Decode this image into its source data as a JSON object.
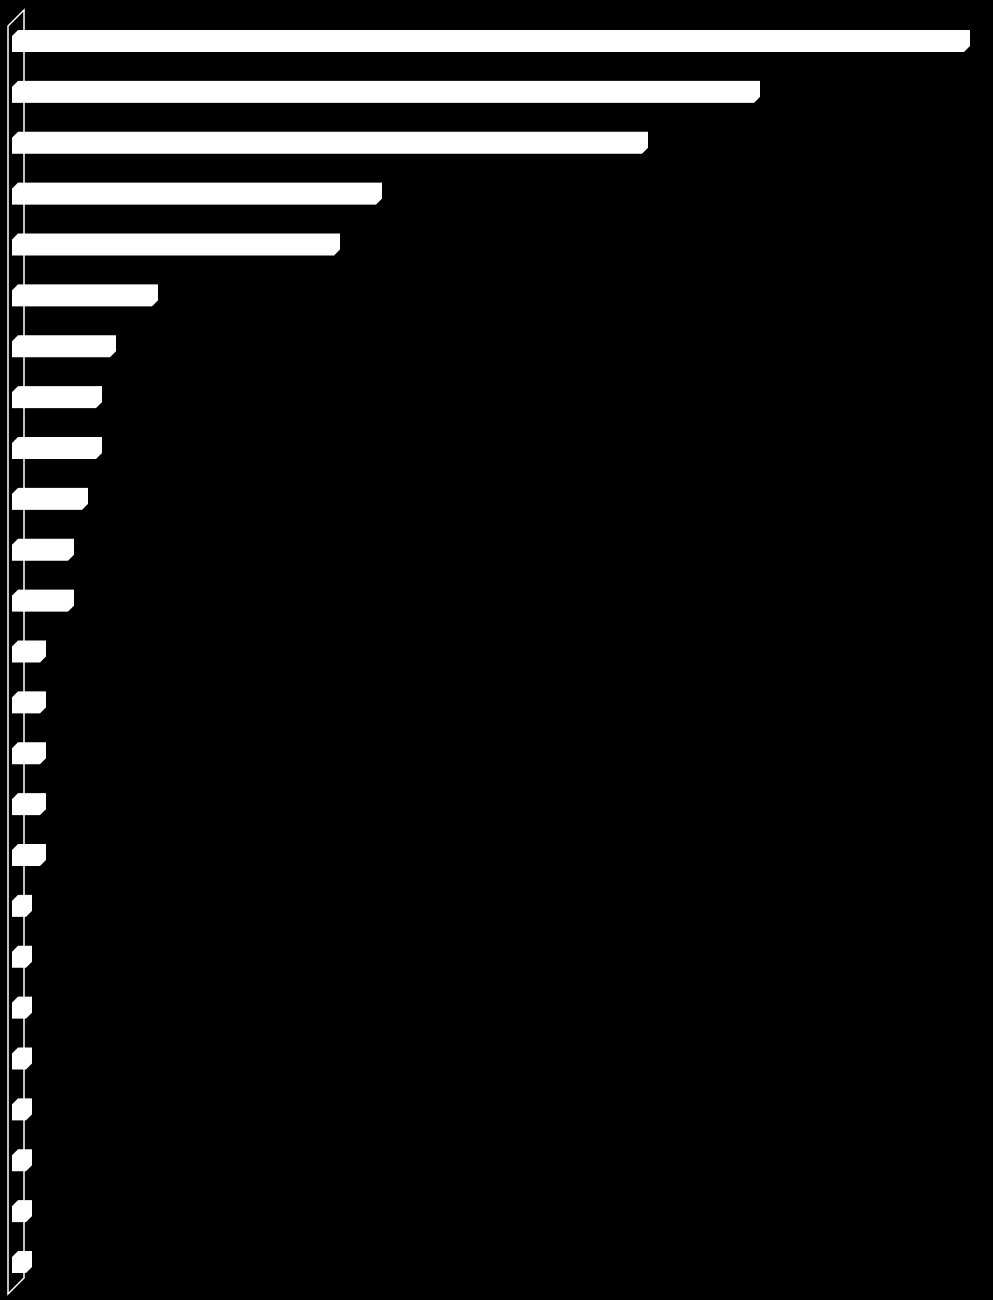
{
  "chart_data": {
    "type": "bar",
    "orientation": "horizontal",
    "categories": [
      null,
      null,
      null,
      null,
      null,
      null,
      null,
      null,
      null,
      null,
      null,
      null,
      null,
      null,
      null,
      null,
      null,
      null,
      null,
      null,
      null,
      null,
      null,
      null,
      null
    ],
    "values": [
      68,
      53,
      45,
      26,
      23,
      10,
      7,
      6,
      6,
      5,
      4,
      4,
      2,
      2,
      2,
      2,
      2,
      1,
      1,
      1,
      1,
      1,
      1,
      1,
      1
    ],
    "color": "#ffffff",
    "background": "#000000",
    "xlim": [
      0,
      68
    ]
  }
}
